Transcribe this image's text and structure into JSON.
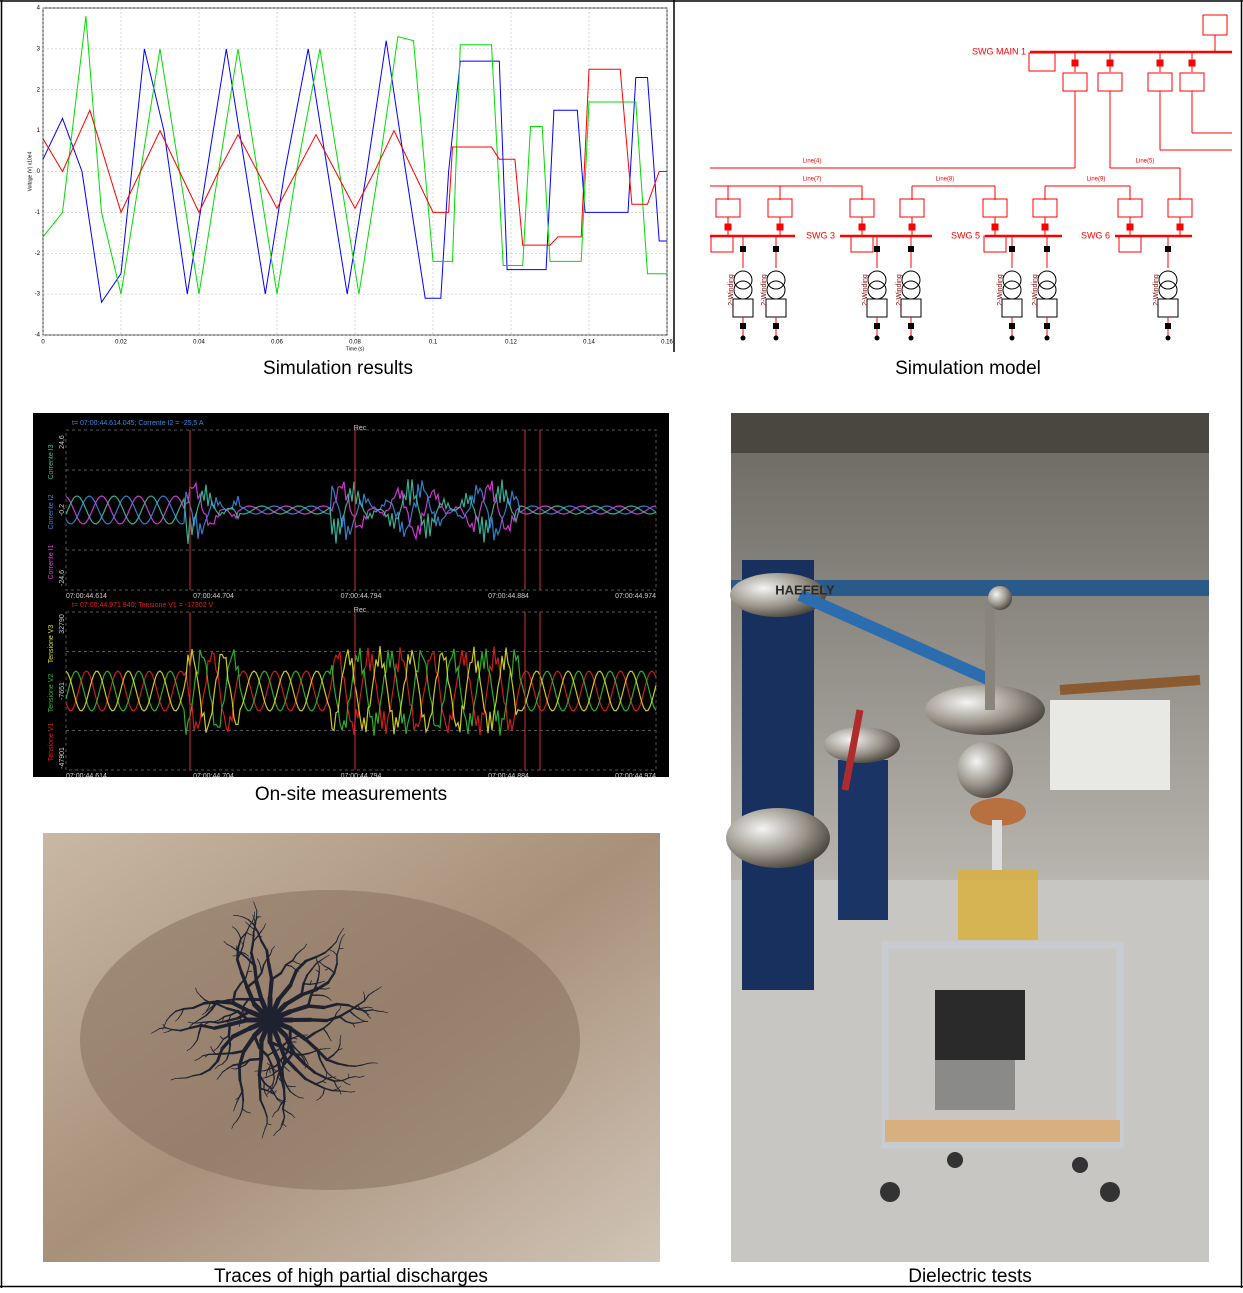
{
  "simulation_results": {
    "caption": "Simulation results",
    "plot": {
      "xlabel": "Time (s)",
      "ylabel": "Voltage (V) x10e4",
      "xlim": [
        0,
        0.16
      ],
      "ylim": [
        -4,
        4
      ],
      "xticks": [
        0,
        0.02,
        0.04,
        0.06,
        0.08,
        0.1,
        0.12,
        0.14,
        0.16
      ],
      "yticks": [
        -4,
        -3,
        -2,
        -1,
        0,
        1,
        2,
        3,
        4
      ],
      "grid": true,
      "series": [
        {
          "color": "#0000ff",
          "x": [
            0,
            0.005,
            0.01,
            0.015,
            0.02,
            0.026,
            0.031,
            0.037,
            0.042,
            0.047,
            0.052,
            0.057,
            0.062,
            0.068,
            0.073,
            0.078,
            0.083,
            0.088,
            0.093,
            0.098,
            0.102,
            0.104,
            0.107,
            0.117,
            0.119,
            0.129,
            0.131,
            0.137,
            0.139,
            0.15,
            0.152,
            0.155,
            0.158,
            0.16
          ],
          "values": [
            0.3,
            1.3,
            0,
            -3.2,
            -2.5,
            3,
            1,
            -3,
            0,
            3,
            0,
            -3,
            0,
            3,
            0,
            -3,
            0,
            3.2,
            0,
            -3.1,
            -3.1,
            0,
            2.7,
            2.7,
            -2.4,
            -2.4,
            1.5,
            1.5,
            -1,
            -1,
            2.3,
            2.3,
            -1.7,
            -1.7
          ]
        },
        {
          "color": "#00dd00",
          "x": [
            0,
            0.005,
            0.011,
            0.015,
            0.02,
            0.025,
            0.03,
            0.035,
            0.04,
            0.045,
            0.05,
            0.055,
            0.06,
            0.065,
            0.071,
            0.076,
            0.081,
            0.086,
            0.091,
            0.095,
            0.1,
            0.105,
            0.107,
            0.115,
            0.118,
            0.123,
            0.125,
            0.128,
            0.13,
            0.138,
            0.14,
            0.152,
            0.155,
            0.16
          ],
          "values": [
            -1.6,
            -1,
            3.8,
            -1,
            -3,
            0,
            3,
            0,
            -3,
            0,
            3,
            0,
            -3,
            0,
            3,
            0,
            -3,
            0,
            3.3,
            3.2,
            -2.2,
            -2.2,
            3.1,
            3.1,
            -2.3,
            -2.3,
            1.1,
            1.1,
            -2.2,
            -2.2,
            1.7,
            1.7,
            -2.5,
            -2.5
          ]
        },
        {
          "color": "#ff0000",
          "x": [
            0,
            0.005,
            0.012,
            0.02,
            0.025,
            0.03,
            0.035,
            0.04,
            0.045,
            0.05,
            0.055,
            0.06,
            0.065,
            0.07,
            0.075,
            0.08,
            0.085,
            0.09,
            0.095,
            0.1,
            0.104,
            0.105,
            0.115,
            0.117,
            0.121,
            0.123,
            0.13,
            0.132,
            0.138,
            0.14,
            0.148,
            0.151,
            0.155,
            0.158,
            0.16
          ],
          "values": [
            0.8,
            0,
            1.5,
            -1,
            0,
            1,
            0,
            -1,
            0,
            0.9,
            0,
            -0.9,
            0,
            0.9,
            0,
            -0.9,
            0,
            1,
            0,
            -1,
            -1,
            0.6,
            0.6,
            0.3,
            0.3,
            -1.8,
            -1.8,
            -1.6,
            -1.6,
            2.5,
            2.5,
            -0.8,
            -0.8,
            0,
            0
          ]
        }
      ]
    }
  },
  "simulation_model": {
    "caption": "Simulation model",
    "main_bus": "SWG MAIN 1",
    "lines": [
      "Line(4)",
      "Line(5)",
      "Line(7)",
      "Line(8)",
      "Line(9)"
    ],
    "buses": [
      "SWG 3",
      "SWG 5",
      "SWG 6"
    ],
    "windings": [
      "2-Winding",
      "2-Winding",
      "2-Winding",
      "2-Winding",
      "2-Winding",
      "2-Winding",
      "2-Winding"
    ]
  },
  "onsite_measurements": {
    "caption": "On-site measurements",
    "top": {
      "header": "t= 07:00:44.614.045; Corrente I2 = -25,5 A",
      "rec": "Rec",
      "scale": [
        "24,6",
        "-0,2",
        "-24,6"
      ],
      "channels": [
        "Corrente I3",
        "Corrente I2",
        "Corrente I1"
      ],
      "times": [
        "07:00:44.614",
        "07:00:44.704",
        "07:00:44.794",
        "07:00:44.884",
        "07:00:44.974"
      ]
    },
    "bottom": {
      "header": "t= 07:00:44.971.940; Tensione V1 = -17302 V",
      "rec": "Rec",
      "scale": [
        "32790",
        "-7651",
        "-47901"
      ],
      "channels": [
        "Tensione V3",
        "Tensione V2",
        "Tensione V1"
      ],
      "times": [
        "07:00:44.614",
        "07:00:44.704",
        "07:00:44.794",
        "07:00:44.884",
        "07:00:44.974"
      ]
    }
  },
  "partial_discharges": {
    "caption": "Traces of high partial discharges"
  },
  "dielectric_tests": {
    "caption": "Dielectric tests",
    "brand": "HAEFELY"
  }
}
